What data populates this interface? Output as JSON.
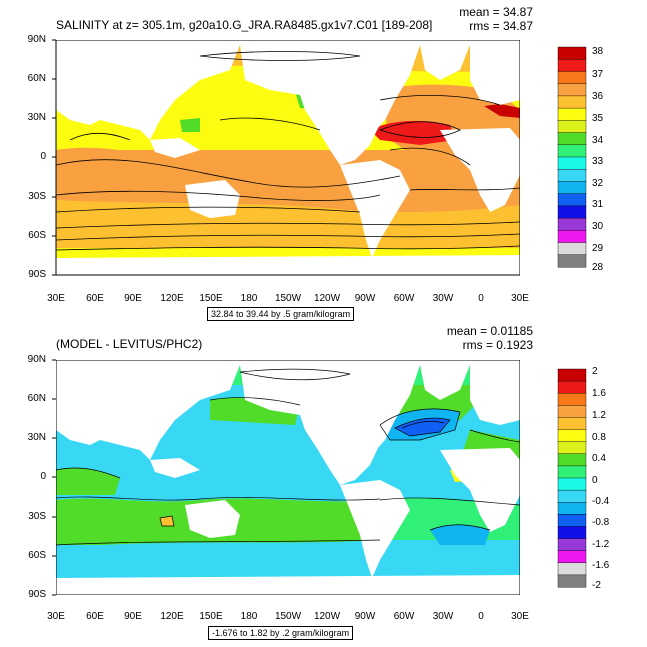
{
  "top_panel": {
    "title": "SALINITY at z= 305.1m, g20a10.G_JRA.RA8485.gx1v7.C01 [189-208]",
    "mean": "mean = 34.87",
    "rms": "rms = 34.87",
    "range_box": "32.84 to 39.44 by .5 gram/kilogram",
    "colorbar_labels": [
      "38",
      "37",
      "36",
      "35",
      "34",
      "33",
      "32",
      "31",
      "30",
      "29",
      "28"
    ],
    "colorbar_colors": [
      "#c80000",
      "#ee1a1a",
      "#f8781a",
      "#f9a040",
      "#fcc030",
      "#fcfc10",
      "#ddf21a",
      "#50dc28",
      "#30f078",
      "#18fae6",
      "#38d8f4",
      "#10b4f0",
      "#1060f4",
      "#1010e8",
      "#9838d8",
      "#f018f0",
      "#dcdcdc",
      "#808080"
    ]
  },
  "bottom_panel": {
    "title": "(MODEL - LEVITUS/PHC2)",
    "mean": "mean = 0.01185",
    "rms": "rms = 0.1923",
    "range_box": "-1.676 to 1.82 by .2 gram/kilogram",
    "colorbar_labels": [
      "2",
      "1.6",
      "1.2",
      "0.8",
      "0.4",
      "0",
      "-0.4",
      "-0.8",
      "-1.2",
      "-1.6",
      "-2"
    ],
    "colorbar_colors": [
      "#c80000",
      "#ee1a1a",
      "#f8781a",
      "#f9a040",
      "#fcc030",
      "#fcfc10",
      "#ddf21a",
      "#50dc28",
      "#30f078",
      "#18fae6",
      "#38d8f4",
      "#10b4f0",
      "#1060f4",
      "#1010e8",
      "#9838d8",
      "#f018f0",
      "#dcdcdc",
      "#808080"
    ]
  },
  "axes": {
    "lat_labels": [
      "90N",
      "60N",
      "30N",
      "0",
      "30S",
      "60S",
      "90S"
    ],
    "lon_labels": [
      "30E",
      "60E",
      "90E",
      "120E",
      "150E",
      "180",
      "150W",
      "120W",
      "90W",
      "60W",
      "30W",
      "0",
      "30E"
    ]
  },
  "colors": {
    "land": "#ffffff",
    "contour": "#000000",
    "top_fill_main": "#fcfc10",
    "top_fill_salty": "#f9a040",
    "bottom_fill_main": "#38d8f4",
    "bottom_fill_pos": "#50dc28"
  }
}
